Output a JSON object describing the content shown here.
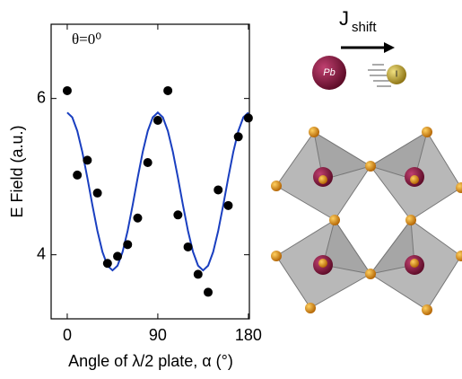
{
  "chart_data": {
    "type": "scatter",
    "annotation": "θ=0⁰",
    "x_label": "Angle of  λ/2 plate,  α (°)",
    "y_label": "E Field (a.u.)",
    "xlim": [
      -16,
      181
    ],
    "ylim": [
      3.18,
      6.95
    ],
    "xticks": [
      0,
      90,
      180
    ],
    "yticks": [
      4,
      6
    ],
    "series": [
      {
        "type": "scatter",
        "color": "#000000",
        "x": [
          0,
          10,
          20,
          30,
          40,
          50,
          60,
          70,
          80,
          90,
          100,
          110,
          120,
          130,
          140,
          150,
          160,
          170,
          180
        ],
        "values": [
          6.1,
          5.02,
          5.21,
          4.79,
          3.89,
          3.98,
          4.13,
          4.47,
          5.18,
          5.72,
          6.1,
          4.51,
          4.1,
          3.75,
          3.52,
          4.83,
          4.63,
          5.51,
          5.75
        ]
      },
      {
        "type": "line",
        "color": "#1a3fc0",
        "x": [
          0,
          5,
          10,
          15,
          20,
          25,
          30,
          35,
          40,
          45,
          50,
          55,
          60,
          65,
          70,
          75,
          80,
          85,
          90,
          95,
          100,
          105,
          110,
          115,
          120,
          125,
          130,
          135,
          140,
          145,
          150,
          155,
          160,
          165,
          170,
          175,
          180
        ],
        "values": [
          5.82,
          5.759,
          5.584,
          5.315,
          4.985,
          4.635,
          4.305,
          4.036,
          3.861,
          3.8,
          3.861,
          4.036,
          4.305,
          4.635,
          4.985,
          5.315,
          5.584,
          5.759,
          5.82,
          5.759,
          5.584,
          5.315,
          4.985,
          4.635,
          4.305,
          4.036,
          3.861,
          3.8,
          3.861,
          4.036,
          4.305,
          4.635,
          4.985,
          5.315,
          5.584,
          5.759,
          5.82
        ]
      }
    ]
  },
  "illustration": {
    "current_label": "J",
    "current_subscript": "shift",
    "pb_label": "Pb",
    "i_label": "I"
  }
}
